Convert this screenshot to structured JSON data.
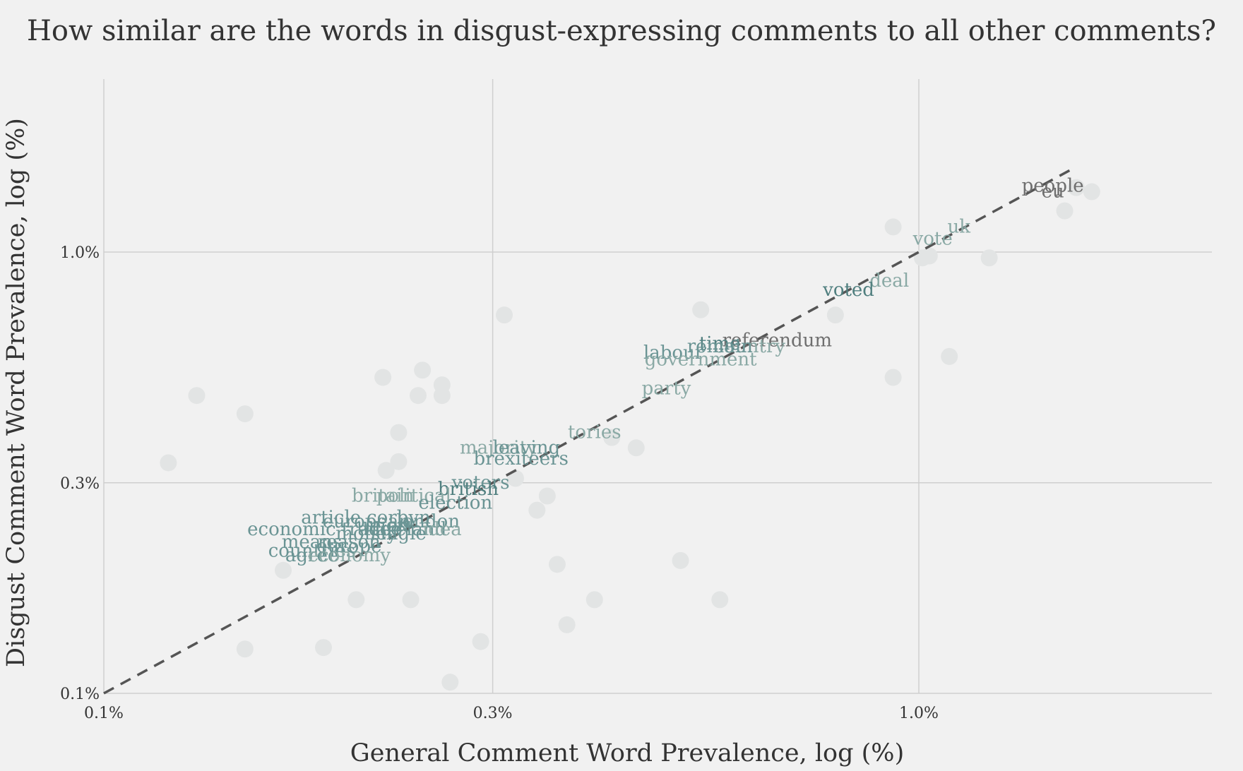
{
  "chart_data": {
    "type": "scatter",
    "title": "How similar are the words in disgust-expressing comments to all other comments?",
    "xlabel": "General Comment Word Prevalence, log (%)",
    "ylabel": "Disgust Comment Word Prevalence, log (%)",
    "x_scale": "log",
    "y_scale": "log",
    "xlim": [
      0.1,
      1.55
    ],
    "ylim": [
      0.1,
      1.55
    ],
    "x_ticks": [
      {
        "value": 0.1,
        "label": "0.1%"
      },
      {
        "value": 0.3,
        "label": "0.3%"
      },
      {
        "value": 1.0,
        "label": "1.0%"
      }
    ],
    "y_ticks": [
      {
        "value": 0.1,
        "label": "0.1%"
      },
      {
        "value": 0.3,
        "label": "0.3%"
      },
      {
        "value": 1.0,
        "label": "1.0%"
      }
    ],
    "grid": true,
    "reference_line": "y = x (dashed)",
    "colors": {
      "background": "#f1f1f1",
      "dot": "#e2e4e4",
      "dark_teal": "#507f7f",
      "mid_teal": "#6a9494",
      "light_teal": "#8aa9a5",
      "gray": "#6f6f6f"
    },
    "labeled_words": [
      {
        "word": "people",
        "x": 1.46,
        "y": 1.41,
        "color": "#6f6f6f"
      },
      {
        "word": "eu",
        "x": 1.46,
        "y": 1.37,
        "color": "#6f6f6f"
      },
      {
        "word": "uk",
        "x": 1.12,
        "y": 1.14,
        "color": "#8aa9a5"
      },
      {
        "word": "vote",
        "x": 1.04,
        "y": 1.07,
        "color": "#8aa9a5"
      },
      {
        "word": "deal",
        "x": 0.92,
        "y": 0.86,
        "color": "#8aa9a5"
      },
      {
        "word": "voted",
        "x": 0.82,
        "y": 0.82,
        "color": "#507f7f"
      },
      {
        "word": "referendum",
        "x": 0.67,
        "y": 0.63,
        "color": "#6f6f6f"
      },
      {
        "word": "country",
        "x": 0.62,
        "y": 0.61,
        "color": "#8aa9a5"
      },
      {
        "word": "time",
        "x": 0.57,
        "y": 0.62,
        "color": "#507f7f"
      },
      {
        "word": "remain",
        "x": 0.57,
        "y": 0.61,
        "color": "#6a9494"
      },
      {
        "word": "labour",
        "x": 0.5,
        "y": 0.59,
        "color": "#6a9494"
      },
      {
        "word": "government",
        "x": 0.54,
        "y": 0.57,
        "color": "#8aa9a5"
      },
      {
        "word": "party",
        "x": 0.49,
        "y": 0.49,
        "color": "#8aa9a5"
      },
      {
        "word": "tories",
        "x": 0.4,
        "y": 0.39,
        "color": "#8aa9a5"
      },
      {
        "word": "majority",
        "x": 0.305,
        "y": 0.36,
        "color": "#8aa9a5"
      },
      {
        "word": "leaving",
        "x": 0.33,
        "y": 0.36,
        "color": "#6a9494"
      },
      {
        "word": "brexiteers",
        "x": 0.325,
        "y": 0.34,
        "color": "#6a9494"
      },
      {
        "word": "voters",
        "x": 0.29,
        "y": 0.3,
        "color": "#6a9494"
      },
      {
        "word": "british",
        "x": 0.28,
        "y": 0.29,
        "color": "#507f7f"
      },
      {
        "word": "britain",
        "x": 0.22,
        "y": 0.28,
        "color": "#8aa9a5"
      },
      {
        "word": "political",
        "x": 0.24,
        "y": 0.28,
        "color": "#8aa9a5"
      },
      {
        "word": "election",
        "x": 0.27,
        "y": 0.27,
        "color": "#6a9494"
      },
      {
        "word": "article",
        "x": 0.19,
        "y": 0.25,
        "color": "#6a9494"
      },
      {
        "word": "corbyn",
        "x": 0.23,
        "y": 0.25,
        "color": "#6a9494"
      },
      {
        "word": "european",
        "x": 0.21,
        "y": 0.245,
        "color": "#6a9494"
      },
      {
        "word": "london",
        "x": 0.25,
        "y": 0.245,
        "color": "#6a9494"
      },
      {
        "word": "union",
        "x": 0.22,
        "y": 0.24,
        "color": "#6a9494"
      },
      {
        "word": "economic",
        "x": 0.17,
        "y": 0.235,
        "color": "#6a9494"
      },
      {
        "word": "trade",
        "x": 0.21,
        "y": 0.235,
        "color": "#6a9494"
      },
      {
        "word": "free",
        "x": 0.22,
        "y": 0.235,
        "color": "#6a9494"
      },
      {
        "word": "ireland",
        "x": 0.24,
        "y": 0.235,
        "color": "#6a9494"
      },
      {
        "word": "idea",
        "x": 0.26,
        "y": 0.235,
        "color": "#8aa9a5"
      },
      {
        "word": "money",
        "x": 0.21,
        "y": 0.23,
        "color": "#6a9494"
      },
      {
        "word": "single",
        "x": 0.23,
        "y": 0.23,
        "color": "#6a9494"
      },
      {
        "word": "means",
        "x": 0.18,
        "y": 0.22,
        "color": "#6a9494"
      },
      {
        "word": "reason",
        "x": 0.2,
        "y": 0.22,
        "color": "#6a9494"
      },
      {
        "word": "europe",
        "x": 0.2,
        "y": 0.215,
        "color": "#6a9494"
      },
      {
        "word": "countries",
        "x": 0.18,
        "y": 0.21,
        "color": "#6a9494"
      },
      {
        "word": "agree",
        "x": 0.18,
        "y": 0.205,
        "color": "#6a9494"
      },
      {
        "word": "economy",
        "x": 0.2,
        "y": 0.205,
        "color": "#8aa9a5"
      }
    ],
    "background_points": [
      {
        "x": 1.63,
        "y": 1.37
      },
      {
        "x": 1.56,
        "y": 1.4
      },
      {
        "x": 1.51,
        "y": 1.24
      },
      {
        "x": 0.93,
        "y": 1.14
      },
      {
        "x": 1.03,
        "y": 0.98
      },
      {
        "x": 1.01,
        "y": 0.97
      },
      {
        "x": 1.22,
        "y": 0.97
      },
      {
        "x": 0.79,
        "y": 0.72
      },
      {
        "x": 0.54,
        "y": 0.74
      },
      {
        "x": 1.09,
        "y": 0.58
      },
      {
        "x": 0.93,
        "y": 0.52
      },
      {
        "x": 0.31,
        "y": 0.72
      },
      {
        "x": 0.22,
        "y": 0.52
      },
      {
        "x": 0.246,
        "y": 0.54
      },
      {
        "x": 0.26,
        "y": 0.5
      },
      {
        "x": 0.243,
        "y": 0.473
      },
      {
        "x": 0.26,
        "y": 0.473
      },
      {
        "x": 0.13,
        "y": 0.473
      },
      {
        "x": 0.149,
        "y": 0.43
      },
      {
        "x": 0.23,
        "y": 0.39
      },
      {
        "x": 0.42,
        "y": 0.38
      },
      {
        "x": 0.45,
        "y": 0.36
      },
      {
        "x": 0.12,
        "y": 0.333
      },
      {
        "x": 0.23,
        "y": 0.335
      },
      {
        "x": 0.222,
        "y": 0.32
      },
      {
        "x": 0.32,
        "y": 0.307
      },
      {
        "x": 0.35,
        "y": 0.28
      },
      {
        "x": 0.34,
        "y": 0.26
      },
      {
        "x": 0.51,
        "y": 0.2
      },
      {
        "x": 0.36,
        "y": 0.196
      },
      {
        "x": 0.57,
        "y": 0.163
      },
      {
        "x": 0.4,
        "y": 0.163
      },
      {
        "x": 0.37,
        "y": 0.143
      },
      {
        "x": 0.166,
        "y": 0.19
      },
      {
        "x": 0.238,
        "y": 0.163
      },
      {
        "x": 0.204,
        "y": 0.163
      },
      {
        "x": 0.29,
        "y": 0.131
      },
      {
        "x": 0.149,
        "y": 0.126
      },
      {
        "x": 0.186,
        "y": 0.127
      },
      {
        "x": 0.266,
        "y": 0.106
      }
    ]
  }
}
